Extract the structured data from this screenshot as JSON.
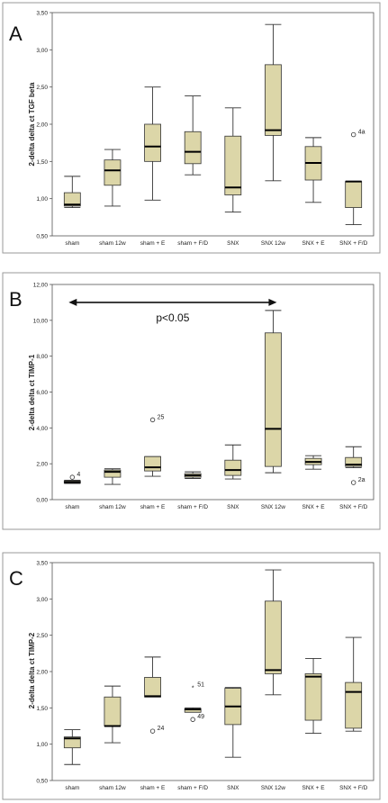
{
  "theme": {
    "box_fill": "#dcd6a8",
    "box_stroke": "#333333",
    "median_color": "#000000",
    "frame_color": "#9a9a9a"
  },
  "chart_data": [
    {
      "type": "boxplot",
      "panel": "A",
      "ylabel": "2-delta delta ct TGF beta",
      "ylim": [
        0.5,
        3.5
      ],
      "yticks": [
        0.5,
        1.0,
        1.5,
        2.0,
        2.5,
        3.0,
        3.5
      ],
      "ytick_labels": [
        "0,50",
        "1,00",
        "1,50",
        "2,00",
        "2,50",
        "3,00",
        "3,50"
      ],
      "categories": [
        "sham",
        "sham 12w",
        "sham + E",
        "sham + F/D",
        "SNX",
        "SNX 12w",
        "SNX + E",
        "SNX + F/D"
      ],
      "boxes": [
        {
          "min": 0.88,
          "q1": 0.9,
          "median": 0.92,
          "q3": 1.08,
          "max": 1.3
        },
        {
          "min": 0.9,
          "q1": 1.18,
          "median": 1.38,
          "q3": 1.52,
          "max": 1.66
        },
        {
          "min": 0.98,
          "q1": 1.5,
          "median": 1.7,
          "q3": 2.0,
          "max": 2.5
        },
        {
          "min": 1.32,
          "q1": 1.47,
          "median": 1.63,
          "q3": 1.9,
          "max": 2.38
        },
        {
          "min": 0.82,
          "q1": 1.05,
          "median": 1.15,
          "q3": 1.84,
          "max": 2.22
        },
        {
          "min": 1.24,
          "q1": 1.85,
          "median": 1.92,
          "q3": 2.8,
          "max": 3.34
        },
        {
          "min": 0.95,
          "q1": 1.25,
          "median": 1.48,
          "q3": 1.7,
          "max": 1.82
        },
        {
          "min": 0.65,
          "q1": 0.88,
          "median": 1.23,
          "q3": 1.23,
          "max": 1.23
        }
      ],
      "outliers": [
        {
          "category": "SNX + F/D",
          "value": 1.86,
          "label": "4a",
          "marker": "circle"
        }
      ]
    },
    {
      "type": "boxplot",
      "panel": "B",
      "ylabel": "2-delta delta ct TIMP-1",
      "ylim": [
        0,
        12
      ],
      "yticks": [
        0,
        2,
        4,
        6,
        8,
        10,
        12
      ],
      "ytick_labels": [
        "0,00",
        "2,00",
        "4,00",
        "6,00",
        "8,00",
        "10,00",
        "12,00"
      ],
      "categories": [
        "sham",
        "sham 12w",
        "sham + E",
        "sham + F/D",
        "SNX",
        "SNX 12w",
        "SNX + E",
        "SNX + F/D"
      ],
      "boxes": [
        {
          "min": 0.9,
          "q1": 0.92,
          "median": 0.97,
          "q3": 1.05,
          "max": 1.08
        },
        {
          "min": 0.85,
          "q1": 1.25,
          "median": 1.55,
          "q3": 1.65,
          "max": 1.72
        },
        {
          "min": 1.3,
          "q1": 1.6,
          "median": 1.8,
          "q3": 2.4,
          "max": 2.4
        },
        {
          "min": 1.18,
          "q1": 1.25,
          "median": 1.35,
          "q3": 1.45,
          "max": 1.55
        },
        {
          "min": 1.15,
          "q1": 1.35,
          "median": 1.65,
          "q3": 2.2,
          "max": 3.05
        },
        {
          "min": 1.5,
          "q1": 1.85,
          "median": 3.95,
          "q3": 9.3,
          "max": 10.55
        },
        {
          "min": 1.7,
          "q1": 1.95,
          "median": 2.1,
          "q3": 2.3,
          "max": 2.45
        },
        {
          "min": 1.78,
          "q1": 1.85,
          "median": 1.95,
          "q3": 2.35,
          "max": 2.95
        }
      ],
      "outliers": [
        {
          "category": "sham",
          "value": 1.25,
          "label": "4",
          "marker": "circle"
        },
        {
          "category": "sham + E",
          "value": 4.45,
          "label": "25",
          "marker": "circle"
        },
        {
          "category": "SNX + F/D",
          "value": 0.95,
          "label": "2a",
          "marker": "circle"
        }
      ],
      "annotation": {
        "text": "p<0.05",
        "from": "sham",
        "to": "SNX 12w",
        "y": 11.0
      }
    },
    {
      "type": "boxplot",
      "panel": "C",
      "ylabel": "2-delta delta ct TIMP-2",
      "ylim": [
        0.5,
        3.5
      ],
      "yticks": [
        0.5,
        1.0,
        1.5,
        2.0,
        2.5,
        3.0,
        3.5
      ],
      "ytick_labels": [
        "0,50",
        "1,00",
        "1,50",
        "2,00",
        "2,50",
        "3,00",
        "3,50"
      ],
      "categories": [
        "sham",
        "sham 12w",
        "sham + E",
        "sham + F/D",
        "SNX",
        "SNX 12w",
        "SNX + E",
        "SNX + F/D"
      ],
      "boxes": [
        {
          "min": 0.72,
          "q1": 0.95,
          "median": 1.08,
          "q3": 1.1,
          "max": 1.2
        },
        {
          "min": 1.02,
          "q1": 1.25,
          "median": 1.25,
          "q3": 1.65,
          "max": 1.8
        },
        {
          "min": 1.65,
          "q1": 1.65,
          "median": 1.66,
          "q3": 1.92,
          "max": 2.2
        },
        {
          "min": 1.44,
          "q1": 1.44,
          "median": 1.48,
          "q3": 1.49,
          "max": 1.5
        },
        {
          "min": 0.82,
          "q1": 1.27,
          "median": 1.52,
          "q3": 1.77,
          "max": 1.78
        },
        {
          "min": 1.68,
          "q1": 1.97,
          "median": 2.02,
          "q3": 2.97,
          "max": 3.4
        },
        {
          "min": 1.15,
          "q1": 1.33,
          "median": 1.93,
          "q3": 1.97,
          "max": 2.18
        },
        {
          "min": 1.18,
          "q1": 1.22,
          "median": 1.72,
          "q3": 1.85,
          "max": 2.47
        }
      ],
      "outliers": [
        {
          "category": "sham + E",
          "value": 1.18,
          "label": "24",
          "marker": "circle"
        },
        {
          "category": "sham + F/D",
          "value": 1.78,
          "label": "51",
          "marker": "star"
        },
        {
          "category": "sham + F/D",
          "value": 1.34,
          "label": "49",
          "marker": "circle"
        }
      ]
    }
  ]
}
